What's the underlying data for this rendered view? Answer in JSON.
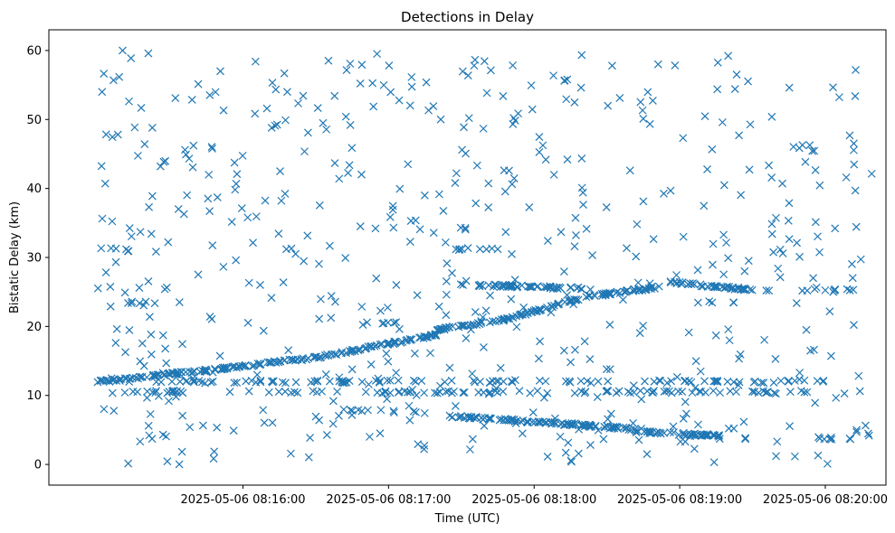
{
  "chart_data": {
    "type": "scatter",
    "title": "Detections in Delay",
    "xlabel": "Time (UTC)",
    "ylabel": "Bistatic Delay (km)",
    "marker": "x",
    "color": "#1f77b4",
    "x_unit": "seconds since 2025-05-06 08:15:00 UTC",
    "xlim": [
      -20,
      325
    ],
    "ylim": [
      -3,
      63
    ],
    "xticks": [
      {
        "value": 60,
        "label": "2025-05-06 08:16:00"
      },
      {
        "value": 120,
        "label": "2025-05-06 08:17:00"
      },
      {
        "value": 180,
        "label": "2025-05-06 08:18:00"
      },
      {
        "value": 240,
        "label": "2025-05-06 08:19:00"
      },
      {
        "value": 300,
        "label": "2025-05-06 08:20:00"
      }
    ],
    "yticks": [
      0,
      10,
      20,
      30,
      40,
      50,
      60
    ],
    "grid": false,
    "series": [
      {
        "name": "main rising track",
        "segments": [
          {
            "x_start": 0,
            "x_end": 50,
            "y_start": 12.0,
            "y_end": 13.8
          },
          {
            "x_start": 50,
            "x_end": 90,
            "y_start": 13.8,
            "y_end": 15.5
          },
          {
            "x_start": 90,
            "x_end": 140,
            "y_start": 15.5,
            "y_end": 18.8
          },
          {
            "x_start": 140,
            "x_end": 168,
            "y_start": 19.5,
            "y_end": 21.0
          },
          {
            "x_start": 168,
            "x_end": 200,
            "y_start": 21.0,
            "y_end": 24.2
          },
          {
            "x_start": 200,
            "x_end": 233,
            "y_start": 24.2,
            "y_end": 25.8
          }
        ]
      },
      {
        "name": "secondary descending tracks",
        "segments": [
          {
            "x_start": 157,
            "x_end": 200,
            "y_start": 26.0,
            "y_end": 25.5
          },
          {
            "x_start": 233,
            "x_end": 270,
            "y_start": 26.5,
            "y_end": 25.3
          },
          {
            "x_start": 145,
            "x_end": 200,
            "y_start": 7.0,
            "y_end": 5.7
          },
          {
            "x_start": 200,
            "x_end": 225,
            "y_start": 5.7,
            "y_end": 5.0
          },
          {
            "x_start": 220,
            "x_end": 258,
            "y_start": 4.8,
            "y_end": 4.1
          }
        ]
      },
      {
        "name": "constant-delay clusters",
        "segments": [
          {
            "x_start": 0,
            "x_end": 15,
            "y_start": 31.5,
            "y_end": 31.0
          },
          {
            "x_start": 0,
            "x_end": 300,
            "y_start": 10.5,
            "y_end": 10.5
          },
          {
            "x_start": 0,
            "x_end": 300,
            "y_start": 12.0,
            "y_end": 12.0
          },
          {
            "x_start": 100,
            "x_end": 135,
            "y_start": 8.0,
            "y_end": 7.5
          },
          {
            "x_start": 110,
            "x_end": 125,
            "y_start": 20.5,
            "y_end": 20.5
          },
          {
            "x_start": 145,
            "x_end": 165,
            "y_start": 31.2,
            "y_end": 31.2
          },
          {
            "x_start": 290,
            "x_end": 315,
            "y_start": 25.3,
            "y_end": 25.3
          },
          {
            "x_start": 295,
            "x_end": 315,
            "y_start": 3.8,
            "y_end": 3.8
          },
          {
            "x_start": 5,
            "x_end": 25,
            "y_start": 23.5,
            "y_end": 23.5
          },
          {
            "x_start": 255,
            "x_end": 268,
            "y_start": 3.7,
            "y_end": 3.7
          },
          {
            "x_start": 245,
            "x_end": 265,
            "y_start": 23.6,
            "y_end": 23.6
          }
        ]
      },
      {
        "name": "clutter",
        "distribution": "uniform",
        "x_range": [
          0,
          320
        ],
        "y_range": [
          0,
          60
        ],
        "approx_count": 560
      }
    ]
  }
}
